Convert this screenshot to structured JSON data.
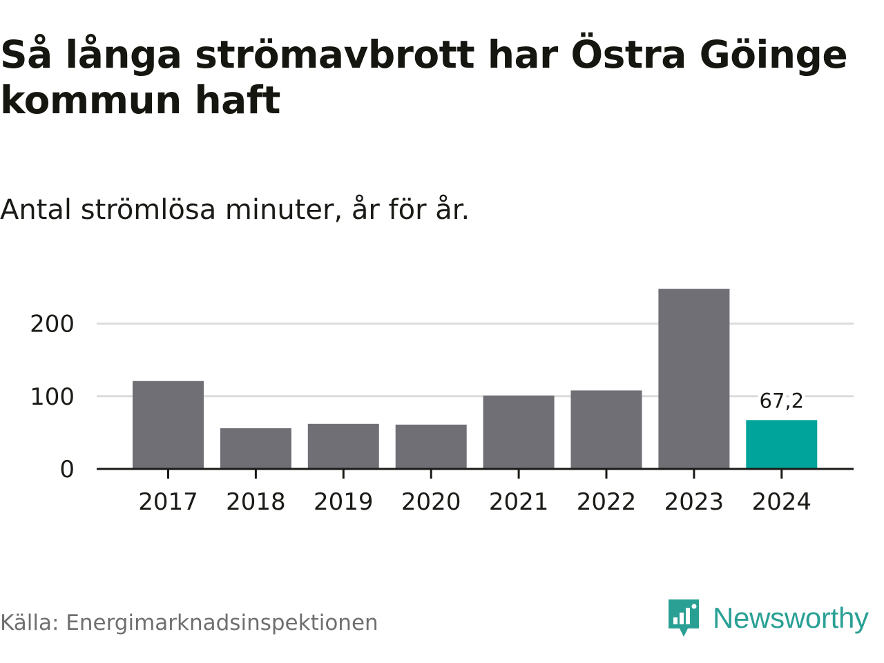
{
  "chart_data": {
    "type": "bar",
    "title": "Så långa strömavbrott har Östra Göinge kommun haft",
    "subtitle": "Antal strömlösa minuter, år för år.",
    "categories": [
      "2017",
      "2018",
      "2019",
      "2020",
      "2021",
      "2022",
      "2023",
      "2024"
    ],
    "values": [
      121,
      56,
      62,
      61,
      101,
      108,
      248,
      67.2
    ],
    "highlight_index": 7,
    "highlight_label": "67,2",
    "yticks": [
      {
        "value": 0,
        "label": "0"
      },
      {
        "value": 100,
        "label": "100"
      },
      {
        "value": 200,
        "label": "200"
      }
    ],
    "ylim": [
      0,
      260
    ],
    "xlabel": "",
    "ylabel": "",
    "grid": true,
    "colors": {
      "bar": "#706f75",
      "highlight": "#00a49a",
      "grid": "#dcdcdc",
      "axis": "#1a1a16"
    }
  },
  "footer": {
    "source": "Källa: Energimarknadsinspektionen",
    "brand": "Newsworthy",
    "brand_color": "#2aa095",
    "brand_icon": "newsworthy-logo-icon"
  }
}
